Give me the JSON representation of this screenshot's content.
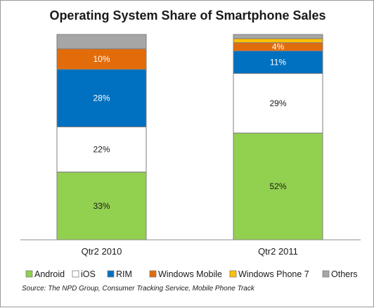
{
  "chart_data": {
    "type": "bar",
    "stacked": true,
    "normalized_percent": true,
    "title": "Operating System Share of Smartphone Sales",
    "categories": [
      "Qtr2 2010",
      "Qtr2 2011"
    ],
    "series": [
      {
        "name": "Android",
        "color": "#92d050",
        "values": [
          33,
          52
        ],
        "labels": [
          "33%",
          "52%"
        ]
      },
      {
        "name": "iOS",
        "color": "#ffffff",
        "values": [
          22,
          29
        ],
        "labels": [
          "22%",
          "29%"
        ]
      },
      {
        "name": "RIM",
        "color": "#0070c0",
        "values": [
          28,
          11
        ],
        "labels": [
          "28%",
          "11%"
        ]
      },
      {
        "name": "Windows Mobile",
        "color": "#e36c0a",
        "values": [
          10,
          4
        ],
        "labels": [
          "10%",
          "4%"
        ]
      },
      {
        "name": "Windows Phone 7",
        "color": "#ffc000",
        "values": [
          0,
          2
        ],
        "labels": [
          "",
          ""
        ]
      },
      {
        "name": "Others",
        "color": "#a6a6a6",
        "values": [
          7,
          2
        ],
        "labels": [
          "",
          ""
        ]
      }
    ],
    "ylim": [
      0,
      100
    ],
    "grid": false,
    "legend_position": "bottom",
    "source": "Source:  The NPD Group, Consumer Tracking Service, Mobile Phone Track"
  }
}
